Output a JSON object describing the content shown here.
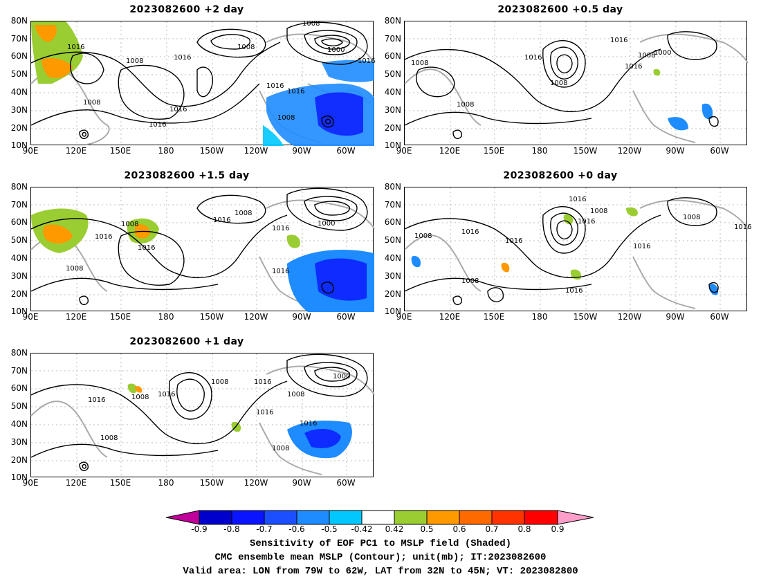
{
  "panels": [
    {
      "title": "2023082600  +2  day"
    },
    {
      "title": "2023082600  +0.5  day"
    },
    {
      "title": "2023082600  +1.5  day"
    },
    {
      "title": "2023082600  +0  day"
    },
    {
      "title": "2023082600  +1  day"
    }
  ],
  "axes": {
    "lat_labels": [
      "80N",
      "70N",
      "60N",
      "50N",
      "40N",
      "30N",
      "20N",
      "10N"
    ],
    "lon_labels": [
      "90E",
      "120E",
      "150E",
      "180",
      "150W",
      "120W",
      "90W",
      "60W"
    ]
  },
  "colorbar": {
    "labels": [
      "-0.9",
      "-0.8",
      "-0.7",
      "-0.6",
      "-0.5",
      "-0.42",
      "0.42",
      "0.5",
      "0.6",
      "0.7",
      "0.8",
      "0.9"
    ],
    "colors": [
      "#c0009a",
      "#0000cc",
      "#0a14ff",
      "#1b4fff",
      "#1e8cff",
      "#00c8ff",
      "#ffffff",
      "#9acd32",
      "#ff9900",
      "#ff6a00",
      "#ff3300",
      "#ff0000",
      "#ff9ec8"
    ]
  },
  "captions": {
    "line1": "Sensitivity of EOF PC1 to MSLP field (Shaded)",
    "line2": "CMC ensemble mean MSLP (Contour); unit(mb); IT:2023082600",
    "line3": "Valid area: LON from 79W to 62W, LAT from 32N to 45N; VT: 2023082800"
  },
  "contour_labels": {
    "p0": [
      "1008",
      "1016",
      "1008",
      "1016",
      "1008",
      "1000",
      "1016",
      "1016",
      "1016",
      "1008",
      "1016",
      "1008"
    ],
    "p1": [
      "1016",
      "1008",
      "1000",
      "1016",
      "1008",
      "1016",
      "1008",
      "1008"
    ],
    "p2": [
      "1016",
      "1008",
      "1000",
      "1016",
      "1008",
      "1016",
      "1016",
      "1008",
      "1016"
    ],
    "p3": [
      "1016",
      "1008",
      "1016",
      "1016",
      "1016",
      "1008",
      "1008",
      "1016",
      "1016",
      "1008",
      "1016"
    ],
    "p4": [
      "1016",
      "1008",
      "1016",
      "1008",
      "1000",
      "1016",
      "1008",
      "1016",
      "1008",
      "1016",
      "1008"
    ]
  }
}
